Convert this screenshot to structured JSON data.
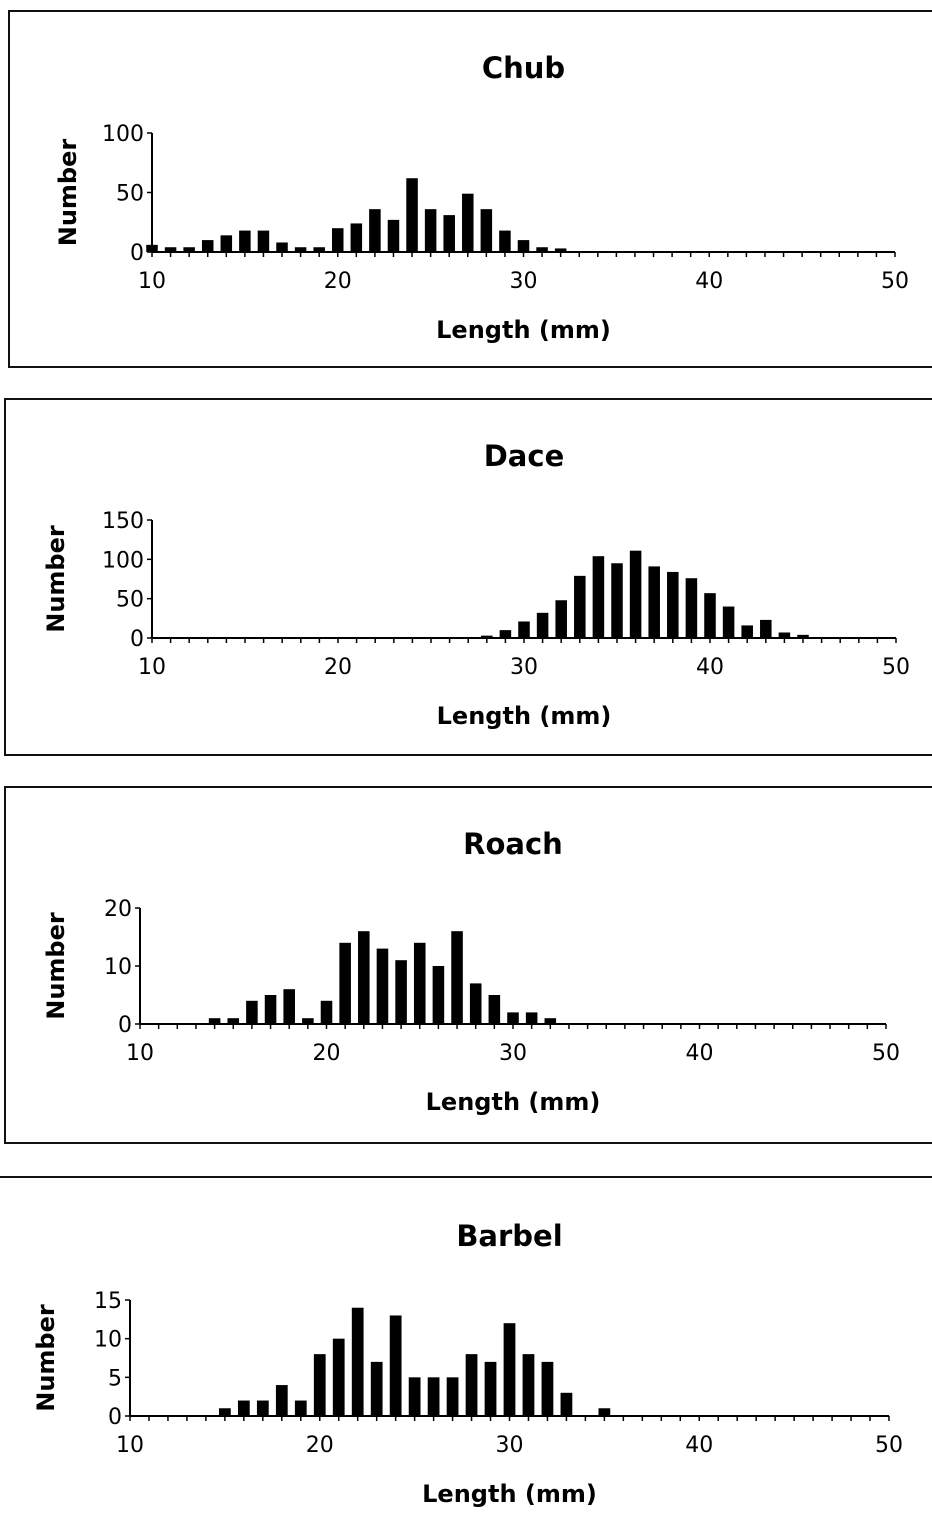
{
  "chart_data": [
    {
      "type": "bar",
      "title": "Chub",
      "xlabel": "Length (mm)",
      "ylabel": "Number",
      "xlim": [
        10,
        50
      ],
      "ylim": [
        0,
        100
      ],
      "xticks": [
        10,
        20,
        30,
        40,
        50
      ],
      "yticks": [
        0,
        50,
        100
      ],
      "grid": false,
      "x": [
        10,
        11,
        12,
        13,
        14,
        15,
        16,
        17,
        18,
        19,
        20,
        21,
        22,
        23,
        24,
        25,
        26,
        27,
        28,
        29,
        30,
        31,
        32
      ],
      "values": [
        6,
        4,
        4,
        10,
        14,
        18,
        18,
        8,
        4,
        4,
        20,
        24,
        36,
        27,
        62,
        36,
        31,
        49,
        36,
        18,
        10,
        4,
        3
      ]
    },
    {
      "type": "bar",
      "title": "Dace",
      "xlabel": "Length (mm)",
      "ylabel": "Number",
      "xlim": [
        10,
        50
      ],
      "ylim": [
        0,
        150
      ],
      "xticks": [
        10,
        20,
        30,
        40,
        50
      ],
      "yticks": [
        0,
        50,
        100,
        150
      ],
      "grid": false,
      "x": [
        28,
        29,
        30,
        31,
        32,
        33,
        34,
        35,
        36,
        37,
        38,
        39,
        40,
        41,
        42,
        43,
        44,
        45
      ],
      "values": [
        3,
        10,
        21,
        32,
        48,
        79,
        104,
        95,
        111,
        91,
        84,
        76,
        57,
        40,
        16,
        23,
        7,
        4
      ]
    },
    {
      "type": "bar",
      "title": "Roach",
      "xlabel": "Length (mm)",
      "ylabel": "Number",
      "xlim": [
        10,
        50
      ],
      "ylim": [
        0,
        20
      ],
      "xticks": [
        10,
        20,
        30,
        40,
        50
      ],
      "yticks": [
        0,
        10,
        20
      ],
      "grid": false,
      "x": [
        14,
        15,
        16,
        17,
        18,
        19,
        20,
        21,
        22,
        23,
        24,
        25,
        26,
        27,
        28,
        29,
        30,
        31,
        32
      ],
      "values": [
        1,
        1,
        4,
        5,
        6,
        1,
        4,
        14,
        16,
        13,
        11,
        14,
        10,
        16,
        7,
        5,
        2,
        2,
        1
      ]
    },
    {
      "type": "bar",
      "title": "Barbel",
      "xlabel": "Length (mm)",
      "ylabel": "Number",
      "xlim": [
        10,
        50
      ],
      "ylim": [
        0,
        15
      ],
      "xticks": [
        10,
        20,
        30,
        40,
        50
      ],
      "yticks": [
        0,
        5,
        10,
        15
      ],
      "grid": false,
      "x": [
        15,
        16,
        17,
        18,
        19,
        20,
        21,
        22,
        23,
        24,
        25,
        26,
        27,
        28,
        29,
        30,
        31,
        32,
        33,
        35
      ],
      "values": [
        1,
        2,
        2,
        4,
        2,
        8,
        10,
        14,
        7,
        13,
        5,
        5,
        5,
        8,
        7,
        12,
        8,
        7,
        3,
        1
      ]
    }
  ]
}
